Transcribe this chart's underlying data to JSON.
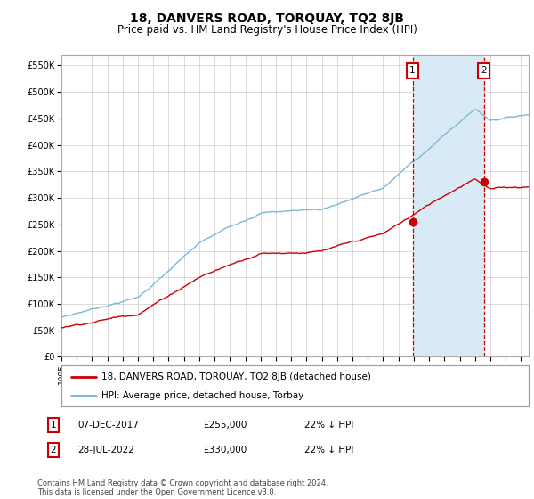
{
  "title": "18, DANVERS ROAD, TORQUAY, TQ2 8JB",
  "subtitle": "Price paid vs. HM Land Registry's House Price Index (HPI)",
  "title_fontsize": 10,
  "subtitle_fontsize": 8.5,
  "ylabel_ticks": [
    "£0",
    "£50K",
    "£100K",
    "£150K",
    "£200K",
    "£250K",
    "£300K",
    "£350K",
    "£400K",
    "£450K",
    "£500K",
    "£550K"
  ],
  "ytick_values": [
    0,
    50000,
    100000,
    150000,
    200000,
    250000,
    300000,
    350000,
    400000,
    450000,
    500000,
    550000
  ],
  "ylim": [
    0,
    570000
  ],
  "xlim_start": 1995.0,
  "xlim_end": 2025.5,
  "hpi_color": "#7ab8d9",
  "price_color": "#cc0000",
  "shade_color": "#d8eaf5",
  "marker1_date": 2017.92,
  "marker1_price": 255000,
  "marker1_label": "1",
  "marker2_date": 2022.57,
  "marker2_price": 330000,
  "marker2_label": "2",
  "legend_line1": "18, DANVERS ROAD, TORQUAY, TQ2 8JB (detached house)",
  "legend_line2": "HPI: Average price, detached house, Torbay",
  "table_row1": [
    "1",
    "07-DEC-2017",
    "£255,000",
    "22% ↓ HPI"
  ],
  "table_row2": [
    "2",
    "28-JUL-2022",
    "£330,000",
    "22% ↓ HPI"
  ],
  "footer": "Contains HM Land Registry data © Crown copyright and database right 2024.\nThis data is licensed under the Open Government Licence v3.0.",
  "background_color": "#ffffff",
  "grid_color": "#cccccc"
}
